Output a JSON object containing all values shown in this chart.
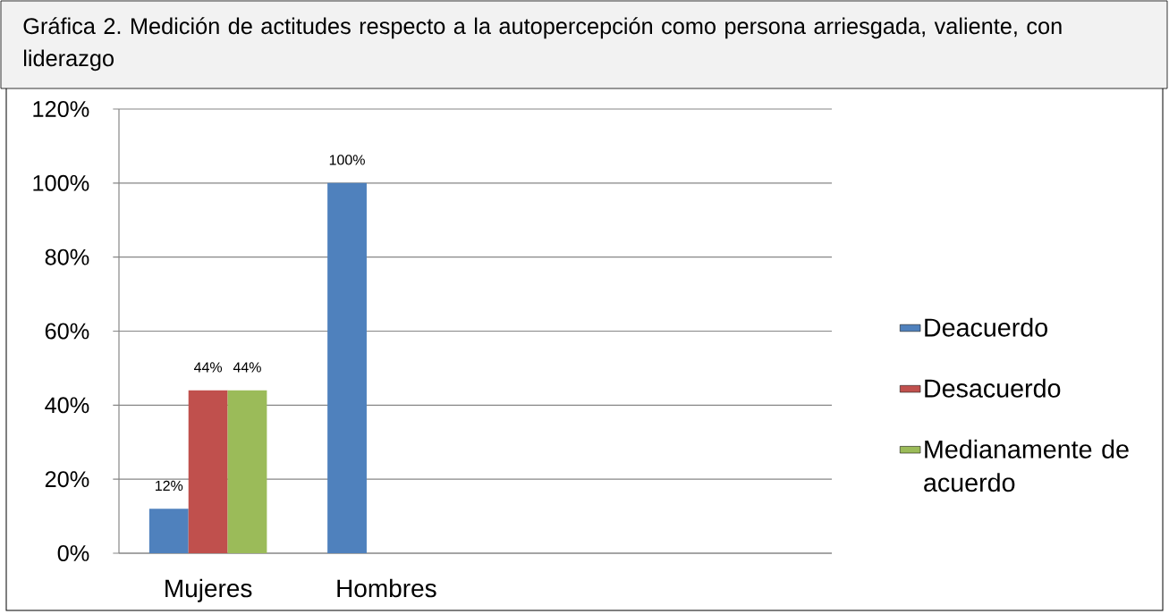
{
  "chart_data": {
    "type": "bar",
    "title": "Gráfica 2. Medición de actitudes respecto a la autopercepción como persona arriesgada, valiente, con liderazgo",
    "categories": [
      "Mujeres",
      "Hombres",
      null,
      null
    ],
    "series": [
      {
        "name": "Deacuerdo",
        "color": "#4f81bd",
        "values": [
          12,
          100,
          null,
          null
        ],
        "value_labels": [
          "12%",
          "100%",
          null,
          null
        ]
      },
      {
        "name": "Desacuerdo",
        "color": "#c0504d",
        "values": [
          44,
          null,
          null,
          null
        ],
        "value_labels": [
          "44%",
          null,
          null,
          null
        ]
      },
      {
        "name": "Medianamente de acuerdo",
        "color": "#9bbb59",
        "values": [
          44,
          null,
          null,
          null
        ],
        "value_labels": [
          "44%",
          null,
          null,
          null
        ]
      }
    ],
    "ylim": [
      0,
      120
    ],
    "yticks": [
      {
        "value": 0,
        "label": "0%"
      },
      {
        "value": 20,
        "label": "20%"
      },
      {
        "value": 40,
        "label": "40%"
      },
      {
        "value": 60,
        "label": "60%"
      },
      {
        "value": 80,
        "label": "80%"
      },
      {
        "value": 100,
        "label": "100%"
      },
      {
        "value": 120,
        "label": "120%"
      }
    ],
    "grid": "y",
    "legend": "right"
  }
}
